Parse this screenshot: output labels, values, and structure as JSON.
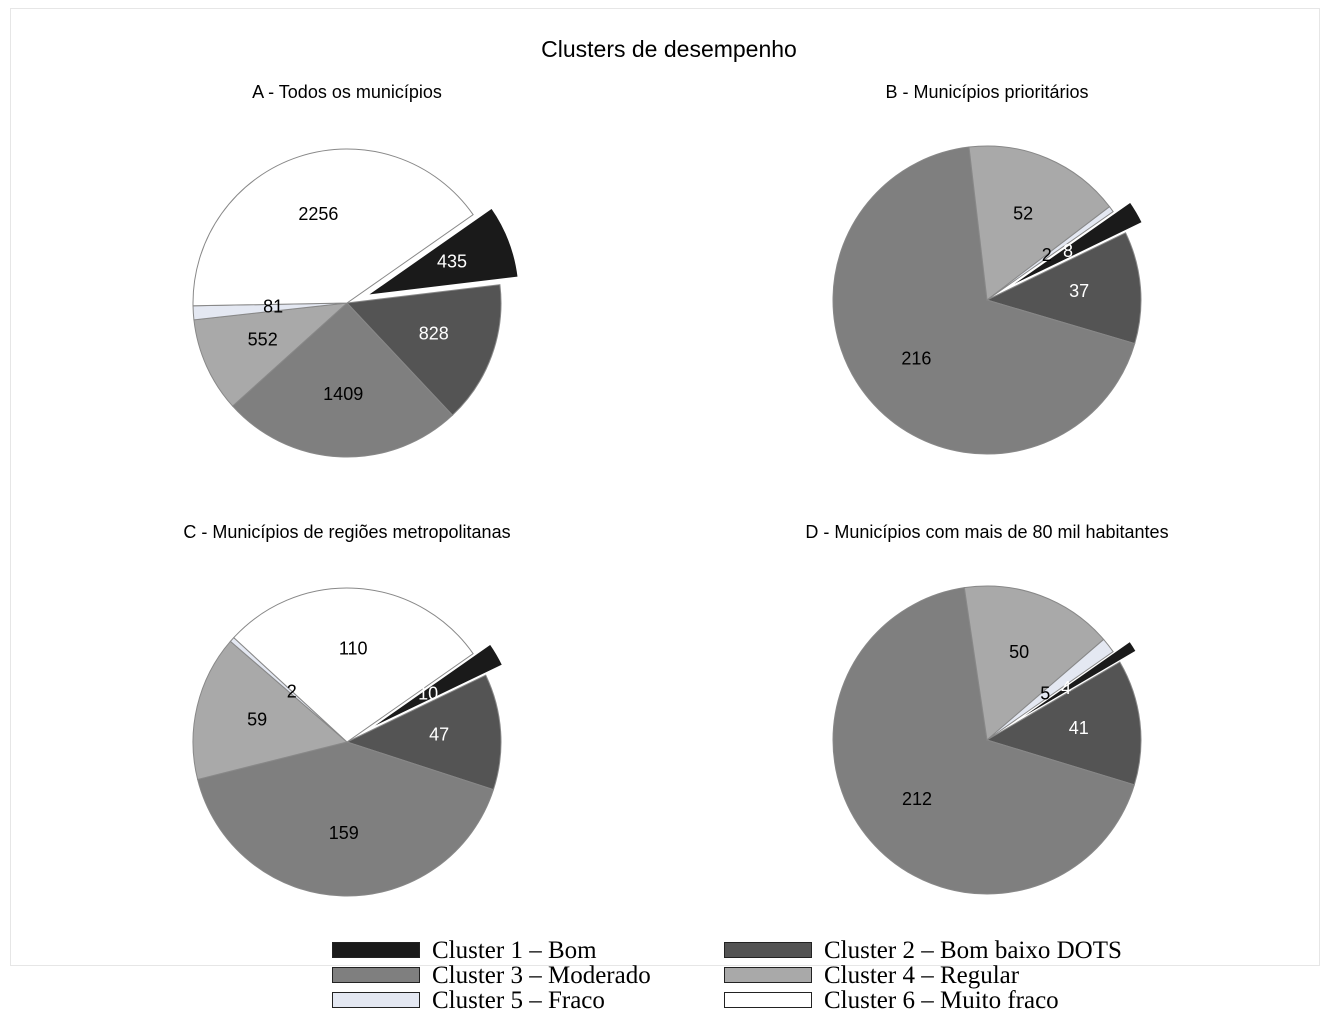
{
  "title": "Clusters de desempenho",
  "colors": {
    "cluster1": "#1a1a1a",
    "cluster2": "#545454",
    "cluster3": "#7f7f7f",
    "cluster4": "#a9a9a9",
    "cluster5": "#e4e8f2",
    "cluster6": "#ffffff"
  },
  "legend": {
    "items": [
      {
        "label": "Cluster 1 – Bom",
        "color": "#1a1a1a"
      },
      {
        "label": "Cluster 2 – Bom baixo DOTS",
        "color": "#545454"
      },
      {
        "label": "Cluster 3 – Moderado",
        "color": "#7f7f7f"
      },
      {
        "label": "Cluster 4 – Regular",
        "color": "#a9a9a9"
      },
      {
        "label": "Cluster 5 – Fraco",
        "color": "#e4e8f2"
      },
      {
        "label": "Cluster 6 – Muito fraco",
        "color": "#ffffff"
      }
    ]
  },
  "chart_data": [
    {
      "type": "pie",
      "title": "A - Todos os municípios",
      "categories": [
        "Cluster 1 – Bom",
        "Cluster 2 – Bom baixo DOTS",
        "Cluster 3 – Moderado",
        "Cluster 4 – Regular",
        "Cluster 5 – Fraco",
        "Cluster 6 – Muito fraco"
      ],
      "values": [
        435,
        828,
        1409,
        552,
        81,
        2256
      ],
      "exploded": "Cluster 1 – Bom"
    },
    {
      "type": "pie",
      "title": "B - Municípios prioritários",
      "categories": [
        "Cluster 1 – Bom",
        "Cluster 2 – Bom baixo DOTS",
        "Cluster 3 – Moderado",
        "Cluster 4 – Regular",
        "Cluster 5 – Fraco",
        "Cluster 6 – Muito fraco"
      ],
      "values": [
        8,
        37,
        216,
        52,
        2,
        0
      ],
      "exploded": "Cluster 1 – Bom"
    },
    {
      "type": "pie",
      "title": "C - Municípios de regiões metropolitanas",
      "categories": [
        "Cluster 1 – Bom",
        "Cluster 2 – Bom baixo DOTS",
        "Cluster 3 – Moderado",
        "Cluster 4 – Regular",
        "Cluster 5 – Fraco",
        "Cluster 6 – Muito fraco"
      ],
      "values": [
        10,
        47,
        159,
        59,
        2,
        110
      ],
      "exploded": "Cluster 1 – Bom"
    },
    {
      "type": "pie",
      "title": "D - Municípios com mais de 80 mil habitantes",
      "categories": [
        "Cluster 1 – Bom",
        "Cluster 2 – Bom baixo DOTS",
        "Cluster 3 – Moderado",
        "Cluster 4 – Regular",
        "Cluster 5 – Fraco",
        "Cluster 6 – Muito fraco"
      ],
      "values": [
        4,
        41,
        212,
        50,
        5,
        0
      ],
      "exploded": "Cluster 1 – Bom"
    }
  ]
}
